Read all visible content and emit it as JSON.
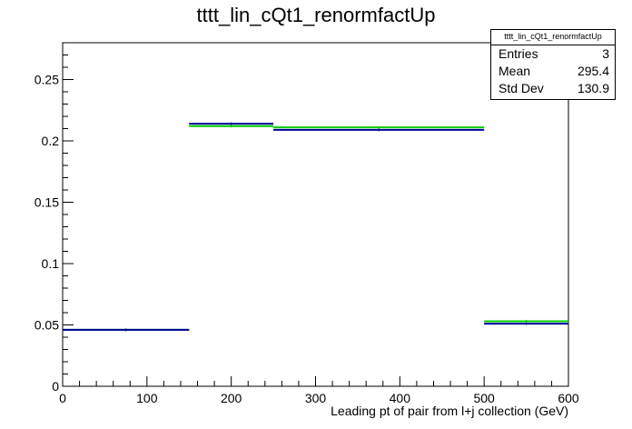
{
  "chart_data": {
    "type": "histogram",
    "title": "tttt_lin_cQt1_renormfactUp",
    "xlabel": "Leading pt of pair from l+j collection (GeV)",
    "ylabel": "",
    "xlim": [
      0,
      600
    ],
    "ylim": [
      0,
      0.28
    ],
    "x_ticks": [
      0,
      100,
      200,
      300,
      400,
      500,
      600
    ],
    "y_ticks": [
      0,
      0.05,
      0.1,
      0.15,
      0.2,
      0.25
    ],
    "x_tick_labels": [
      "0",
      "100",
      "200",
      "300",
      "400",
      "500",
      "600"
    ],
    "y_tick_labels": [
      "0",
      "0.05",
      "0.1",
      "0.15",
      "0.2",
      "0.25"
    ],
    "bin_edges": [
      0,
      150,
      250,
      500,
      600
    ],
    "series": [
      {
        "color": "#00cc00",
        "values": [
          0.046,
          0.212,
          0.211,
          0.053
        ]
      },
      {
        "color": "#000099",
        "values": [
          0.046,
          0.214,
          0.209,
          0.051
        ]
      }
    ],
    "grid": false
  },
  "stats": {
    "header": "tttt_lin_cQt1_renormfactUp",
    "rows": [
      {
        "label": "Entries",
        "value": "3"
      },
      {
        "label": "Mean",
        "value": "295.4"
      },
      {
        "label": "Std Dev",
        "value": "130.9"
      }
    ]
  }
}
